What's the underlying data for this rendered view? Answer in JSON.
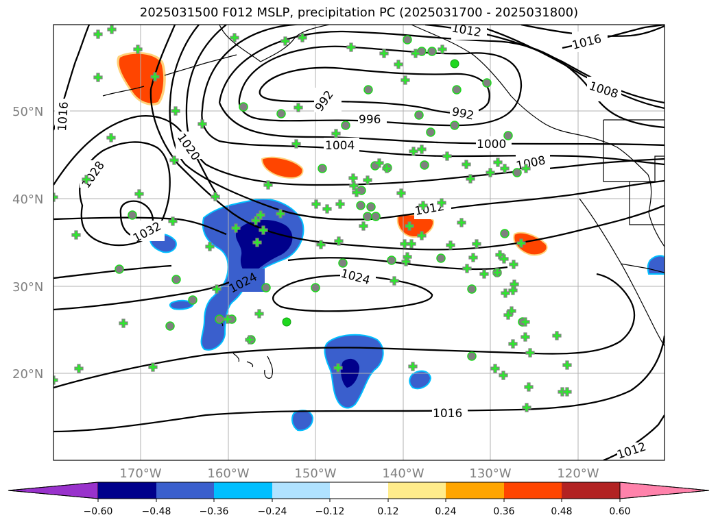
{
  "title": "2025031500 F012 MSLP, precipitation PC (2025031700 - 2025031800)",
  "latitude_labels": [
    "50°N",
    "40°N",
    "30°N",
    "20°N"
  ],
  "longitude_labels": [
    "170°W",
    "160°W",
    "150°W",
    "140°W",
    "130°W",
    "120°W"
  ],
  "contour_labels": [
    "1016",
    "1020",
    "1028",
    "1032",
    "1024",
    "1024",
    "992",
    "992",
    "996",
    "1004",
    "1000",
    "1008",
    "1008",
    "1012",
    "1012",
    "1016",
    "1016",
    "1012"
  ],
  "colorbar": {
    "ticks": [
      "−0.60",
      "−0.48",
      "−0.36",
      "−0.24",
      "−0.12",
      "0.12",
      "0.24",
      "0.36",
      "0.48",
      "0.60"
    ],
    "colors": [
      "#9932cc",
      "#00008b",
      "#3a5fcd",
      "#00bfff",
      "#b0e2ff",
      "#ffffff",
      "#ffec8b",
      "#ffa500",
      "#ff4500",
      "#b22222",
      "#ff82ab"
    ]
  }
}
